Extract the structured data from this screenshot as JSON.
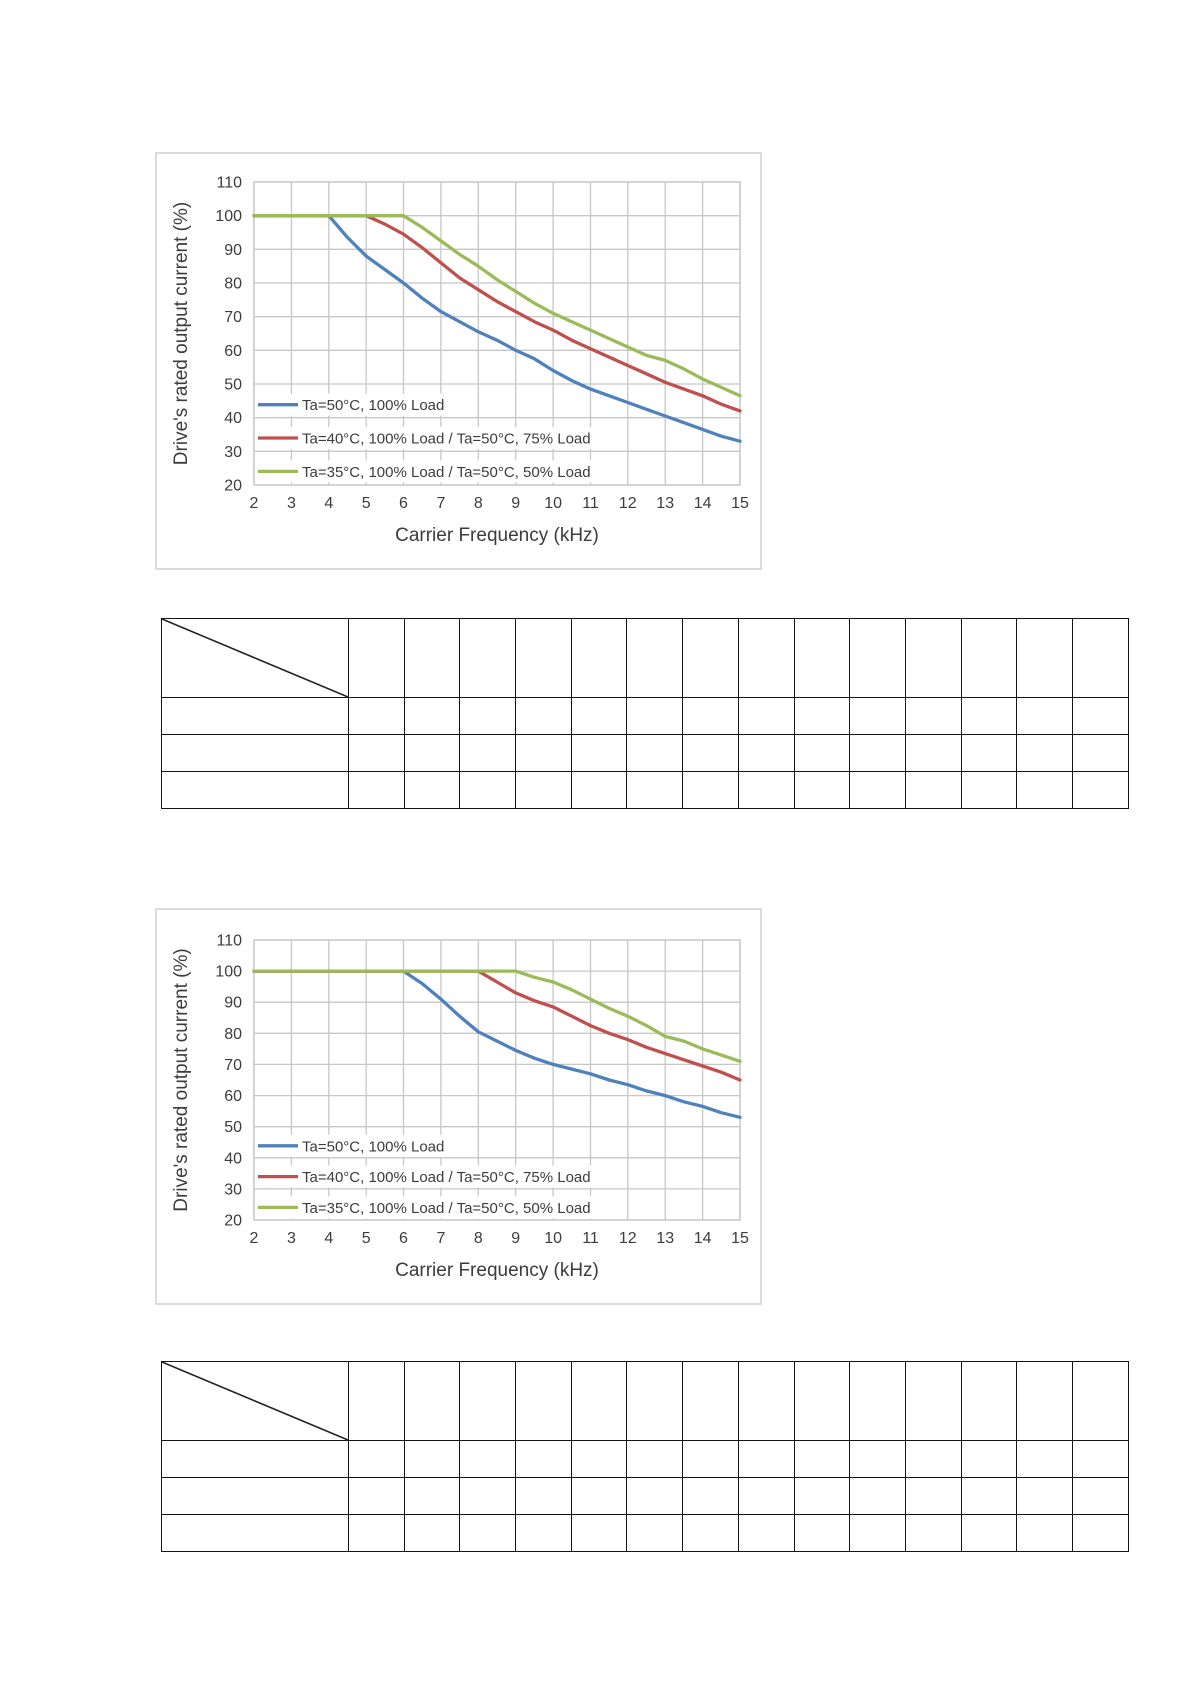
{
  "page": {
    "background": "#ffffff"
  },
  "colors": {
    "series_blue": "#4F81BD",
    "series_red": "#C0504D",
    "series_green": "#9BBB59",
    "gridline": "#c7c7c7",
    "chart_border": "#dcdcdc",
    "table_border": "#141414",
    "text": "#3c3c3c"
  },
  "chart_data": [
    {
      "type": "line",
      "title": "",
      "xlabel": "Carrier Frequency (kHz)",
      "ylabel": "Drive's rated output current (%)",
      "xlim": [
        2,
        15
      ],
      "ylim": [
        20,
        110
      ],
      "xticks": [
        2,
        3,
        4,
        5,
        6,
        7,
        8,
        9,
        10,
        11,
        12,
        13,
        14,
        15
      ],
      "yticks": [
        20,
        30,
        40,
        50,
        60,
        70,
        80,
        90,
        100,
        110
      ],
      "grid": true,
      "legend_position": "inside-bottom-left",
      "series": [
        {
          "name": "Ta=50°C, 100% Load",
          "color": "#4F81BD",
          "points": [
            [
              2,
              100
            ],
            [
              4,
              100
            ],
            [
              4.5,
              93.5
            ],
            [
              5,
              88
            ],
            [
              5.5,
              84
            ],
            [
              6,
              80
            ],
            [
              6.5,
              75.5
            ],
            [
              7,
              71.5
            ],
            [
              7.5,
              68.5
            ],
            [
              8,
              65.5
            ],
            [
              8.5,
              63
            ],
            [
              9,
              60
            ],
            [
              9.5,
              57.5
            ],
            [
              10,
              54
            ],
            [
              10.5,
              51
            ],
            [
              11,
              48.5
            ],
            [
              11.5,
              46.5
            ],
            [
              12,
              44.5
            ],
            [
              12.5,
              42.5
            ],
            [
              13,
              40.5
            ],
            [
              13.5,
              38.5
            ],
            [
              14,
              36.5
            ],
            [
              14.5,
              34.5
            ],
            [
              15,
              33
            ]
          ]
        },
        {
          "name": "Ta=40°C, 100% Load / Ta=50°C, 75% Load",
          "color": "#C0504D",
          "points": [
            [
              2,
              100
            ],
            [
              5,
              100
            ],
            [
              5.5,
              97.5
            ],
            [
              6,
              94.5
            ],
            [
              6.5,
              90.5
            ],
            [
              7,
              86
            ],
            [
              7.5,
              81.5
            ],
            [
              8,
              78
            ],
            [
              8.5,
              74.5
            ],
            [
              9,
              71.5
            ],
            [
              9.5,
              68.5
            ],
            [
              10,
              66
            ],
            [
              10.5,
              63
            ],
            [
              11,
              60.5
            ],
            [
              11.5,
              58
            ],
            [
              12,
              55.5
            ],
            [
              12.5,
              53
            ],
            [
              13,
              50.5
            ],
            [
              13.5,
              48.5
            ],
            [
              14,
              46.5
            ],
            [
              14.5,
              44
            ],
            [
              15,
              42
            ]
          ]
        },
        {
          "name": "Ta=35°C, 100% Load / Ta=50°C, 50% Load",
          "color": "#9BBB59",
          "points": [
            [
              2,
              100
            ],
            [
              6,
              100
            ],
            [
              6.5,
              96.5
            ],
            [
              7,
              92.5
            ],
            [
              7.5,
              88.5
            ],
            [
              8,
              85
            ],
            [
              8.5,
              81
            ],
            [
              9,
              77.5
            ],
            [
              9.5,
              74
            ],
            [
              10,
              71
            ],
            [
              10.5,
              68.5
            ],
            [
              11,
              66
            ],
            [
              11.5,
              63.5
            ],
            [
              12,
              61
            ],
            [
              12.5,
              58.5
            ],
            [
              13,
              57
            ],
            [
              13.5,
              54.5
            ],
            [
              14,
              51.5
            ],
            [
              14.5,
              49
            ],
            [
              15,
              46.5
            ]
          ]
        }
      ]
    },
    {
      "type": "line",
      "title": "",
      "xlabel": "Carrier Frequency (kHz)",
      "ylabel": "Drive's rated output current (%)",
      "xlim": [
        2,
        15
      ],
      "ylim": [
        20,
        110
      ],
      "xticks": [
        2,
        3,
        4,
        5,
        6,
        7,
        8,
        9,
        10,
        11,
        12,
        13,
        14,
        15
      ],
      "yticks": [
        20,
        30,
        40,
        50,
        60,
        70,
        80,
        90,
        100,
        110
      ],
      "grid": true,
      "legend_position": "inside-bottom-left",
      "series": [
        {
          "name": "Ta=50°C, 100% Load",
          "color": "#4F81BD",
          "points": [
            [
              2,
              100
            ],
            [
              6,
              100
            ],
            [
              6.5,
              96
            ],
            [
              7,
              91
            ],
            [
              7.5,
              85.5
            ],
            [
              8,
              80.5
            ],
            [
              8.5,
              77.5
            ],
            [
              9,
              74.5
            ],
            [
              9.5,
              72
            ],
            [
              10,
              70
            ],
            [
              10.5,
              68.5
            ],
            [
              11,
              67
            ],
            [
              11.5,
              65
            ],
            [
              12,
              63.5
            ],
            [
              12.5,
              61.5
            ],
            [
              13,
              60
            ],
            [
              13.5,
              58
            ],
            [
              14,
              56.5
            ],
            [
              14.5,
              54.5
            ],
            [
              15,
              53
            ]
          ]
        },
        {
          "name": "Ta=40°C, 100% Load / Ta=50°C, 75% Load",
          "color": "#C0504D",
          "points": [
            [
              2,
              100
            ],
            [
              8,
              100
            ],
            [
              8.5,
              96.5
            ],
            [
              9,
              93
            ],
            [
              9.5,
              90.5
            ],
            [
              10,
              88.5
            ],
            [
              10.5,
              85.5
            ],
            [
              11,
              82.5
            ],
            [
              11.5,
              80
            ],
            [
              12,
              78
            ],
            [
              12.5,
              75.5
            ],
            [
              13,
              73.5
            ],
            [
              13.5,
              71.5
            ],
            [
              14,
              69.5
            ],
            [
              14.5,
              67.5
            ],
            [
              15,
              65
            ]
          ]
        },
        {
          "name": "Ta=35°C, 100% Load / Ta=50°C, 50% Load",
          "color": "#9BBB59",
          "points": [
            [
              2,
              100
            ],
            [
              9,
              100
            ],
            [
              9.5,
              98
            ],
            [
              10,
              96.5
            ],
            [
              10.5,
              94
            ],
            [
              11,
              91
            ],
            [
              11.5,
              88
            ],
            [
              12,
              85.5
            ],
            [
              12.5,
              82.5
            ],
            [
              13,
              79
            ],
            [
              13.5,
              77.5
            ],
            [
              14,
              75
            ],
            [
              14.5,
              73
            ],
            [
              15,
              71
            ]
          ]
        }
      ]
    }
  ],
  "tables": [
    {
      "name": "derating-table-1",
      "header_rows": 1,
      "body_row_count": 3,
      "label_columns": 1,
      "value_column_count": 14,
      "diagonal_split_header": true,
      "cells_empty": true
    },
    {
      "name": "derating-table-2",
      "header_rows": 1,
      "body_row_count": 3,
      "label_columns": 1,
      "value_column_count": 14,
      "diagonal_split_header": true,
      "cells_empty": true
    }
  ]
}
